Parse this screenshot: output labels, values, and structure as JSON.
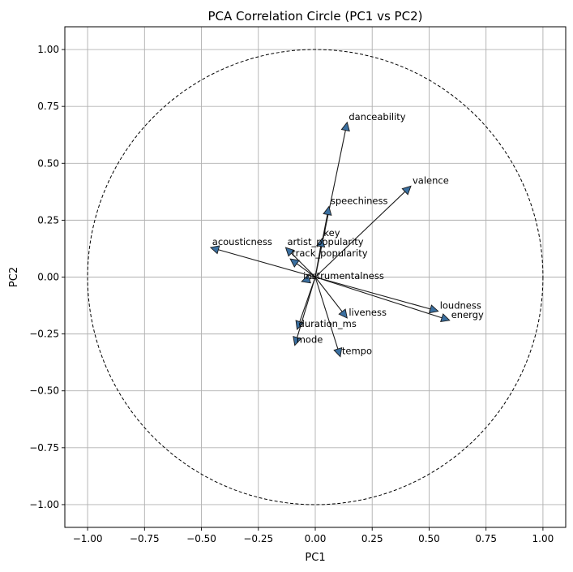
{
  "chart_data": {
    "type": "scatter",
    "title": "PCA Correlation Circle (PC1 vs PC2)",
    "xlabel": "PC1",
    "ylabel": "PC2",
    "xlim": [
      -1.1,
      1.1
    ],
    "ylim": [
      -1.1,
      1.1
    ],
    "x_ticks": [
      -1.0,
      -0.75,
      -0.5,
      -0.25,
      0.0,
      0.25,
      0.5,
      0.75,
      1.0
    ],
    "x_tick_labels": [
      "−1.00",
      "−0.75",
      "−0.50",
      "−0.25",
      "0.00",
      "0.25",
      "0.50",
      "0.75",
      "1.00"
    ],
    "y_ticks": [
      1.0,
      0.75,
      0.5,
      0.25,
      0.0,
      -0.25,
      -0.5,
      -0.75,
      -1.0
    ],
    "y_tick_labels": [
      "1.00",
      "0.75",
      "0.50",
      "0.25",
      "0.00",
      "−0.25",
      "−0.50",
      "−0.75",
      "−1.00"
    ],
    "grid": true,
    "unit_circle": true,
    "arrow_color": "#3a6fa0",
    "vectors": [
      {
        "name": "danceability",
        "x": 0.14,
        "y": 0.68
      },
      {
        "name": "valence",
        "x": 0.42,
        "y": 0.4
      },
      {
        "name": "speechiness",
        "x": 0.06,
        "y": 0.31
      },
      {
        "name": "key",
        "x": 0.03,
        "y": 0.17
      },
      {
        "name": "artist_popularity",
        "x": -0.13,
        "y": 0.13
      },
      {
        "name": "acousticness",
        "x": -0.46,
        "y": 0.13
      },
      {
        "name": "track_popularity",
        "x": -0.11,
        "y": 0.08
      },
      {
        "name": "instrumentalness",
        "x": -0.06,
        "y": -0.02
      },
      {
        "name": "loudness",
        "x": 0.54,
        "y": -0.15
      },
      {
        "name": "energy",
        "x": 0.59,
        "y": -0.19
      },
      {
        "name": "liveness",
        "x": 0.14,
        "y": -0.18
      },
      {
        "name": "duration_ms",
        "x": -0.08,
        "y": -0.23
      },
      {
        "name": "mode",
        "x": -0.09,
        "y": -0.3
      },
      {
        "name": "tempo",
        "x": 0.11,
        "y": -0.35
      }
    ]
  }
}
